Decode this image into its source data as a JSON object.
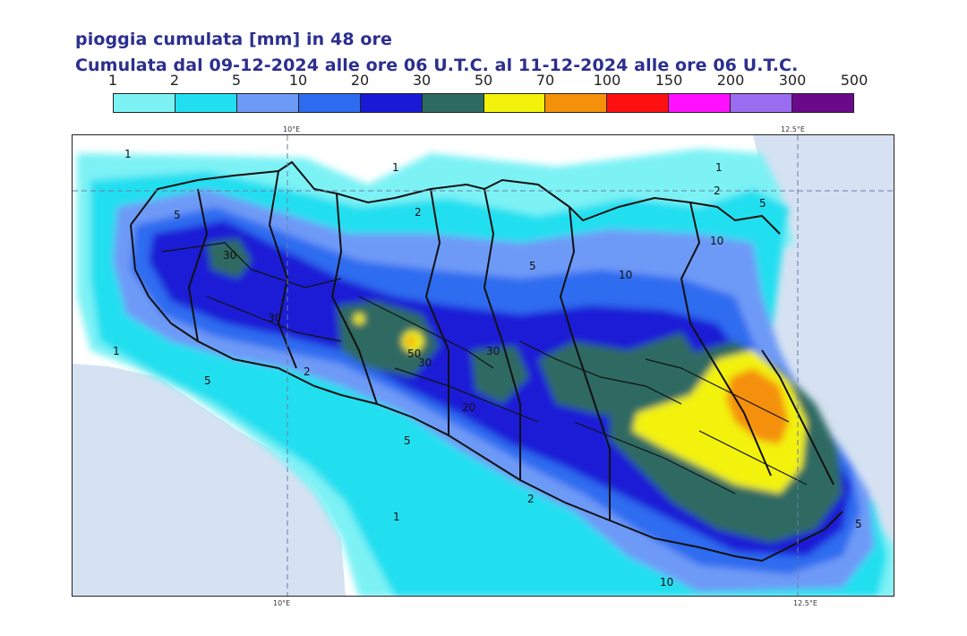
{
  "title": "pioggia cumulata [mm] in 48 ore",
  "subtitle": "Cumulata dal 09-12-2024 alle ore 06 U.T.C. al 11-12-2024 alle ore 06 U.T.C.",
  "legend": {
    "thresholds": [
      "1",
      "2",
      "5",
      "10",
      "20",
      "30",
      "50",
      "70",
      "100",
      "150",
      "200",
      "300",
      "500"
    ],
    "colors": [
      "#7df2f5",
      "#22dff0",
      "#6e9af7",
      "#2d6cf0",
      "#1a1ad6",
      "#2d6b62",
      "#f2f20a",
      "#f5900a",
      "#ff1010",
      "#ff10ff",
      "#9a6cf0",
      "#6a0a8a"
    ]
  },
  "axis": {
    "top_left": "10°E",
    "top_right": "12.5°E",
    "bottom_left": "10°E",
    "bottom_right": "12.5°E"
  },
  "map": {
    "contour_labels": [
      "1",
      "1",
      "2",
      "5",
      "30",
      "30",
      "1",
      "5",
      "50",
      "30",
      "2",
      "5",
      "30",
      "20",
      "5",
      "10",
      "10",
      "1",
      "2",
      "5",
      "2",
      "1",
      "5",
      "10"
    ],
    "colors": {
      "sea": "#d6e2f2",
      "land_dry": "#ffffff",
      "border": "#111111"
    }
  }
}
